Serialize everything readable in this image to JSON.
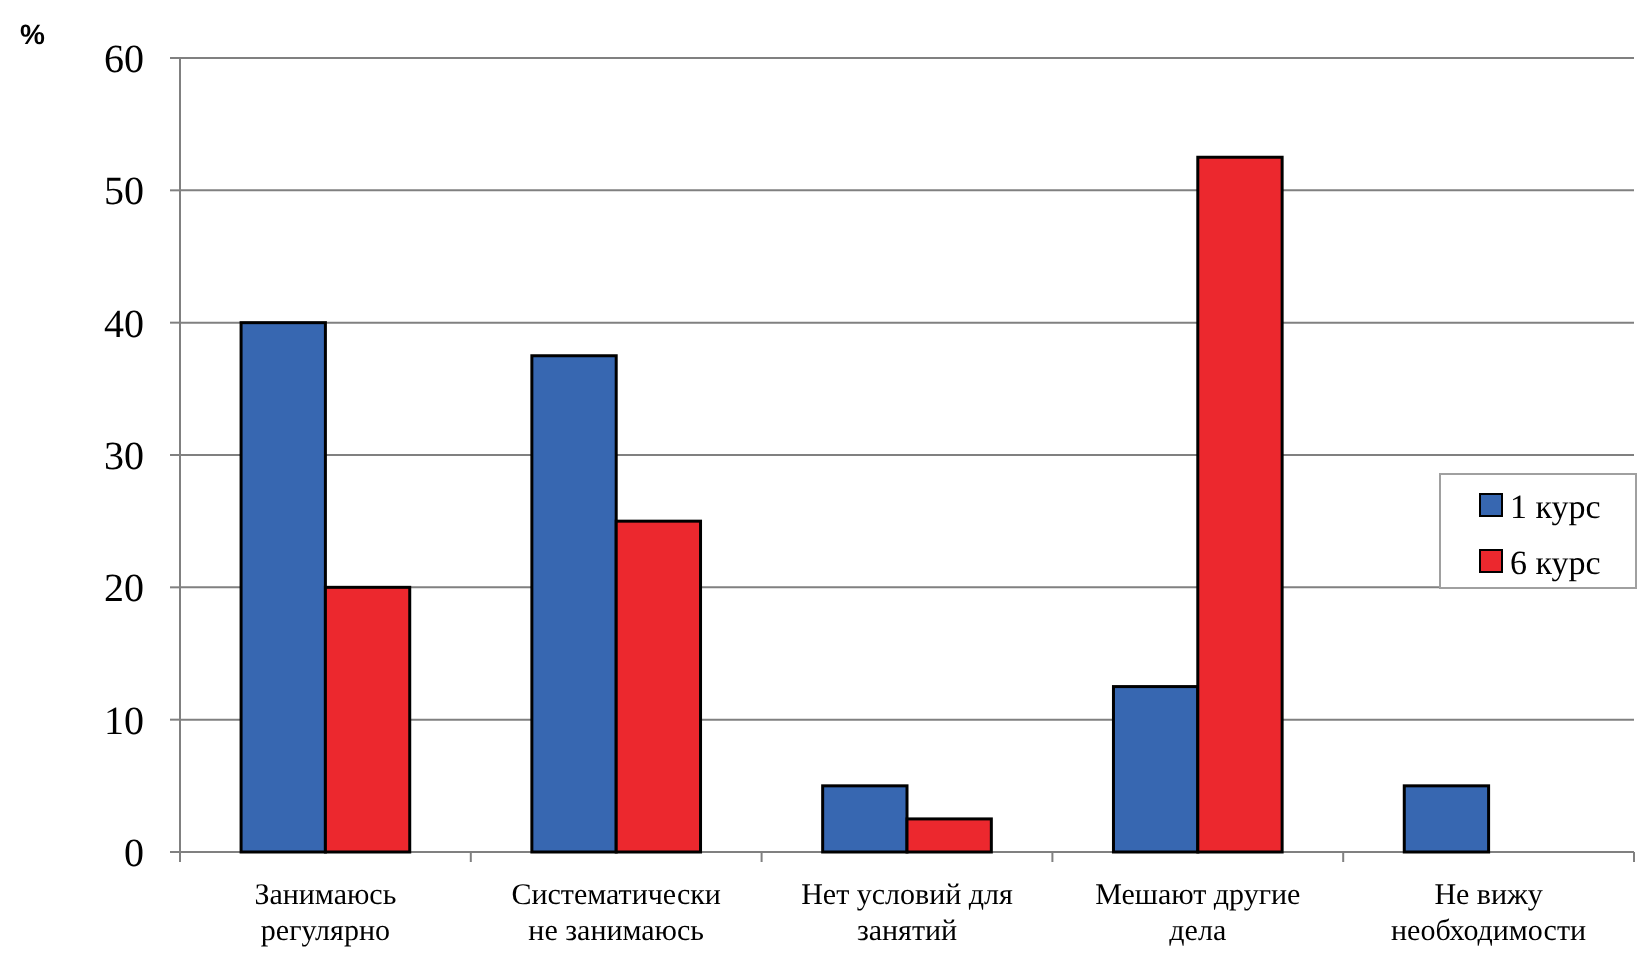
{
  "chart_data": {
    "type": "bar",
    "ylabel": "%",
    "categories": [
      "Занимаюсь регулярно",
      "Систематически не занимаюсь",
      "Нет условий для занятий",
      "Мешают другие дела",
      "Не вижу необходимости"
    ],
    "series": [
      {
        "name": "1 курс",
        "color": "#3767b1",
        "values": [
          40,
          37.5,
          5,
          12.5,
          5
        ]
      },
      {
        "name": "6 курс",
        "color": "#ec282e",
        "values": [
          20,
          25,
          2.5,
          52.5,
          0
        ]
      }
    ],
    "ylim": [
      0,
      60
    ],
    "yticks": [
      0,
      10,
      20,
      30,
      40,
      50,
      60
    ],
    "grid": "y",
    "legend": "right"
  }
}
